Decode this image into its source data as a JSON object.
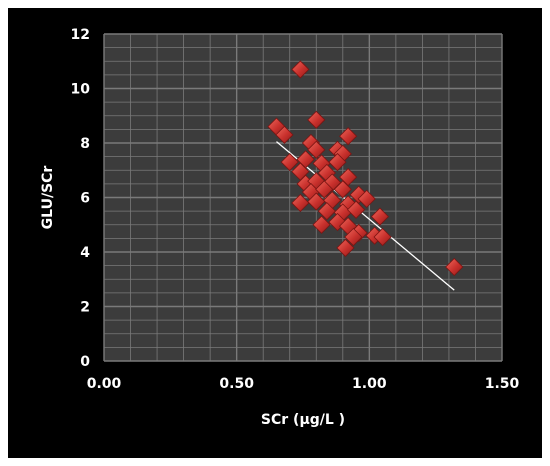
{
  "chart_data": {
    "type": "scatter",
    "xlabel": "SCr (μg/L )",
    "ylabel": "GLU/SCr",
    "xlim": [
      0.0,
      1.5
    ],
    "ylim": [
      0,
      12
    ],
    "x_ticks": [
      "0.00",
      "0.50",
      "1.00",
      "1.50"
    ],
    "y_ticks": [
      "0",
      "2",
      "4",
      "6",
      "8",
      "10",
      "12"
    ],
    "grid": true,
    "legend": "none",
    "colors": {
      "background": "#000000",
      "plot_area": "#3c3c3c",
      "gridline": "#7a7a7a",
      "marker": "#c8302c",
      "trendline": "#ffffff",
      "text": "#ffffff"
    },
    "series": [
      {
        "points": [
          [
            0.74,
            10.7
          ],
          [
            0.65,
            8.6
          ],
          [
            0.68,
            8.3
          ],
          [
            0.8,
            8.85
          ],
          [
            0.92,
            8.25
          ],
          [
            0.78,
            8.0
          ],
          [
            0.8,
            7.75
          ],
          [
            0.88,
            7.75
          ],
          [
            0.9,
            7.6
          ],
          [
            0.7,
            7.3
          ],
          [
            0.76,
            7.4
          ],
          [
            0.82,
            7.25
          ],
          [
            0.88,
            7.3
          ],
          [
            0.74,
            6.95
          ],
          [
            0.84,
            6.9
          ],
          [
            0.92,
            6.75
          ],
          [
            0.76,
            6.5
          ],
          [
            0.8,
            6.6
          ],
          [
            0.86,
            6.55
          ],
          [
            0.78,
            6.2
          ],
          [
            0.83,
            6.3
          ],
          [
            0.9,
            6.3
          ],
          [
            0.96,
            6.1
          ],
          [
            0.74,
            5.8
          ],
          [
            0.8,
            5.85
          ],
          [
            0.86,
            5.9
          ],
          [
            0.92,
            5.75
          ],
          [
            0.99,
            5.95
          ],
          [
            0.84,
            5.5
          ],
          [
            0.9,
            5.45
          ],
          [
            0.95,
            5.55
          ],
          [
            0.88,
            5.1
          ],
          [
            0.82,
            5.0
          ],
          [
            0.92,
            4.95
          ],
          [
            1.04,
            5.3
          ],
          [
            0.96,
            4.7
          ],
          [
            1.02,
            4.6
          ],
          [
            0.94,
            4.55
          ],
          [
            1.05,
            4.55
          ],
          [
            0.91,
            4.15
          ],
          [
            1.32,
            3.45
          ]
        ]
      }
    ],
    "trendline": {
      "x": [
        0.65,
        1.32
      ],
      "y": [
        8.05,
        2.6
      ]
    }
  }
}
